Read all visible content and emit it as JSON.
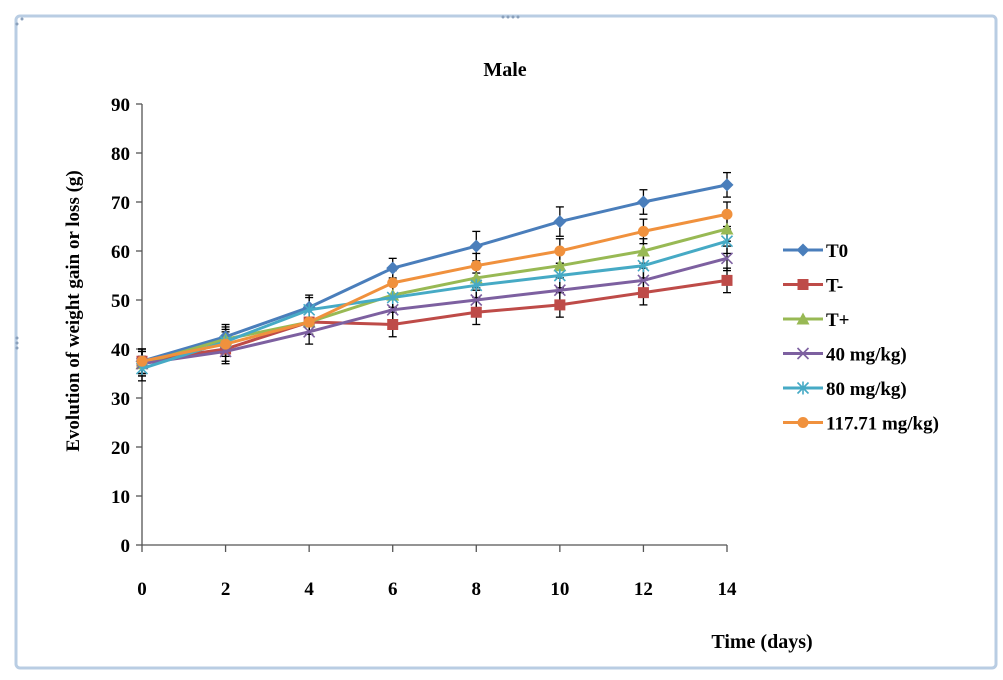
{
  "chart_data": {
    "type": "line",
    "title": "Male",
    "xlabel": "Time (days)",
    "ylabel": "Evolution of weight gain or loss (g)",
    "x": [
      0,
      2,
      4,
      6,
      8,
      10,
      12,
      14
    ],
    "xticks": [
      "0",
      "2",
      "4",
      "6",
      "8",
      "10",
      "12",
      "14"
    ],
    "yticks": [
      "0",
      "10",
      "20",
      "30",
      "40",
      "50",
      "60",
      "70",
      "80",
      "90"
    ],
    "xlim": [
      0,
      14
    ],
    "ylim": [
      0,
      90
    ],
    "grid": false,
    "legend_position": "right",
    "series": [
      {
        "name": "T0",
        "color": "#4a7ebb",
        "marker": "diamond",
        "values": [
          37.5,
          42.5,
          48.5,
          56.5,
          61,
          66,
          70,
          73.5
        ],
        "errors": [
          2.5,
          2.5,
          2.5,
          2,
          3,
          3,
          2.5,
          2.5
        ]
      },
      {
        "name": "T-",
        "color": "#be4b48",
        "marker": "square",
        "values": [
          37.5,
          40,
          45.5,
          45,
          47.5,
          49,
          51.5,
          54
        ],
        "errors": [
          2.5,
          2.5,
          2.5,
          2.5,
          2.5,
          2.5,
          2.5,
          2.5
        ]
      },
      {
        "name": "T+",
        "color": "#98b954",
        "marker": "triangle",
        "values": [
          37,
          42,
          45.5,
          51,
          54.5,
          57,
          60,
          64.5
        ],
        "errors": [
          2.5,
          2.5,
          2.5,
          2.5,
          2.5,
          2.5,
          2.5,
          2.5
        ]
      },
      {
        "name": "40 mg/kg)",
        "color": "#7d60a0",
        "marker": "x",
        "values": [
          37,
          39.5,
          43.5,
          48,
          50,
          52,
          54,
          58.5
        ],
        "errors": [
          2.5,
          2.5,
          2.5,
          2.5,
          2.5,
          2.5,
          2.5,
          2.5
        ]
      },
      {
        "name": "80 mg/kg)",
        "color": "#46aac5",
        "marker": "star",
        "values": [
          36,
          41.5,
          48,
          50.5,
          53,
          55,
          57,
          62
        ],
        "errors": [
          2.5,
          2.5,
          2.5,
          2.5,
          2.5,
          2.5,
          2.5,
          2.5
        ]
      },
      {
        "name": "117.71 mg/kg)",
        "color": "#f0913d",
        "marker": "circle",
        "values": [
          37.5,
          41,
          45.5,
          53.5,
          57,
          60,
          64,
          67.5
        ],
        "errors": [
          2.5,
          2.5,
          2.5,
          2.5,
          2.5,
          2.5,
          2.5,
          2.5
        ]
      }
    ]
  }
}
